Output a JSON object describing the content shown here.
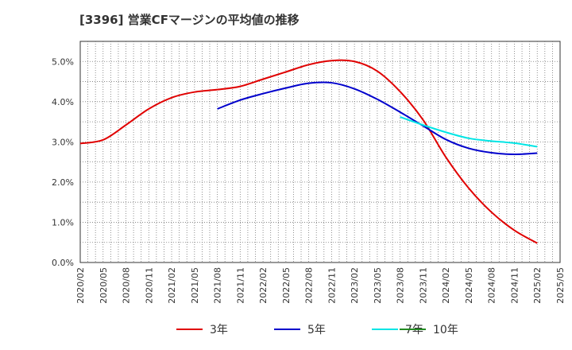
{
  "chart_data": {
    "type": "line",
    "title": "[3396]  営業CFマージンの平均値の推移",
    "xlabel": "",
    "ylabel": "",
    "ylim": [
      0,
      5.5
    ],
    "yticks": [
      0,
      1,
      2,
      3,
      4,
      5
    ],
    "ytick_labels": [
      "0.0%",
      "1.0%",
      "2.0%",
      "3.0%",
      "4.0%",
      "5.0%"
    ],
    "x_tick_labels": [
      "2020/02",
      "2020/05",
      "2020/08",
      "2020/11",
      "2021/02",
      "2021/05",
      "2021/08",
      "2021/11",
      "2022/02",
      "2022/05",
      "2022/08",
      "2022/11",
      "2023/02",
      "2023/05",
      "2023/08",
      "2023/11",
      "2024/02",
      "2024/05",
      "2024/08",
      "2024/11",
      "2025/02",
      "2025/05"
    ],
    "grid": true,
    "legend_position": "bottom",
    "series": [
      {
        "name": "3年",
        "color": "#e00000",
        "points": [
          [
            "2020/02",
            2.96
          ],
          [
            "2020/05",
            3.05
          ],
          [
            "2020/08",
            3.42
          ],
          [
            "2020/11",
            3.82
          ],
          [
            "2021/02",
            4.1
          ],
          [
            "2021/05",
            4.24
          ],
          [
            "2021/08",
            4.3
          ],
          [
            "2021/11",
            4.38
          ],
          [
            "2022/02",
            4.56
          ],
          [
            "2022/05",
            4.74
          ],
          [
            "2022/08",
            4.92
          ],
          [
            "2022/11",
            5.02
          ],
          [
            "2023/02",
            5.0
          ],
          [
            "2023/05",
            4.76
          ],
          [
            "2023/08",
            4.25
          ],
          [
            "2023/11",
            3.55
          ],
          [
            "2024/02",
            2.62
          ],
          [
            "2024/05",
            1.85
          ],
          [
            "2024/08",
            1.25
          ],
          [
            "2024/11",
            0.8
          ],
          [
            "2025/02",
            0.48
          ]
        ]
      },
      {
        "name": "5年",
        "color": "#0000cc",
        "points": [
          [
            "2021/08",
            3.82
          ],
          [
            "2021/11",
            4.04
          ],
          [
            "2022/02",
            4.2
          ],
          [
            "2022/05",
            4.34
          ],
          [
            "2022/08",
            4.46
          ],
          [
            "2022/11",
            4.47
          ],
          [
            "2023/02",
            4.32
          ],
          [
            "2023/05",
            4.06
          ],
          [
            "2023/08",
            3.74
          ],
          [
            "2023/11",
            3.4
          ],
          [
            "2024/02",
            3.06
          ],
          [
            "2024/05",
            2.84
          ],
          [
            "2024/08",
            2.73
          ],
          [
            "2024/11",
            2.69
          ],
          [
            "2025/02",
            2.72
          ]
        ]
      },
      {
        "name": "7年",
        "color": "#00e5e5",
        "points": [
          [
            "2023/08",
            3.62
          ],
          [
            "2023/11",
            3.42
          ],
          [
            "2024/02",
            3.24
          ],
          [
            "2024/05",
            3.09
          ],
          [
            "2024/08",
            3.02
          ],
          [
            "2024/11",
            2.97
          ],
          [
            "2025/02",
            2.88
          ]
        ]
      },
      {
        "name": "10年",
        "color": "#228b22",
        "points": []
      }
    ]
  }
}
